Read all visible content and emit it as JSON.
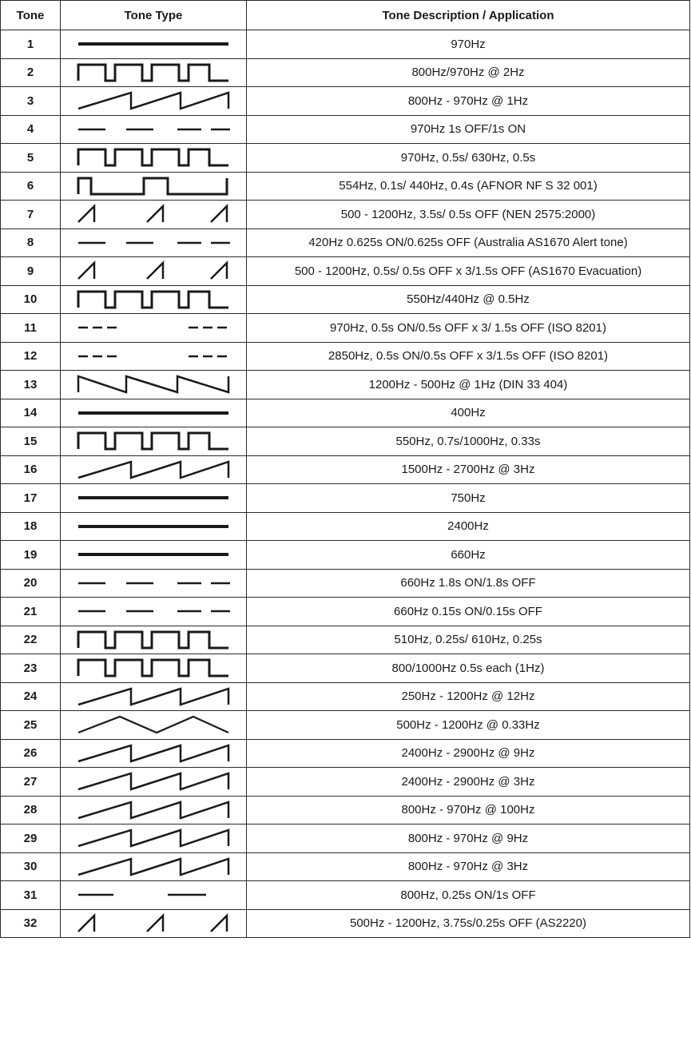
{
  "headers": {
    "tone": "Tone",
    "type": "Tone Type",
    "desc": "Tone Description / Application"
  },
  "rows": [
    {
      "tone": "1",
      "wave": "continuous",
      "desc": "970Hz"
    },
    {
      "tone": "2",
      "wave": "square",
      "desc": "800Hz/970Hz @ 2Hz"
    },
    {
      "tone": "3",
      "wave": "sawtooth-3",
      "desc": "800Hz - 970Hz @ 1Hz"
    },
    {
      "tone": "4",
      "wave": "dashes",
      "desc": "970Hz 1s OFF/1s ON"
    },
    {
      "tone": "5",
      "wave": "square",
      "desc": "970Hz, 0.5s/ 630Hz, 0.5s"
    },
    {
      "tone": "6",
      "wave": "square-wide",
      "desc": "554Hz, 0.1s/ 440Hz, 0.4s (AFNOR NF S 32 001)"
    },
    {
      "tone": "7",
      "wave": "ramp-gap",
      "desc": "500 - 1200Hz, 3.5s/ 0.5s OFF (NEN 2575:2000)"
    },
    {
      "tone": "8",
      "wave": "dashes",
      "desc": "420Hz 0.625s ON/0.625s OFF (Australia AS1670 Alert tone)"
    },
    {
      "tone": "9",
      "wave": "ramp-gap",
      "desc": "500 - 1200Hz, 0.5s/ 0.5s OFF x 3/1.5s OFF (AS1670 Evacuation)"
    },
    {
      "tone": "10",
      "wave": "square",
      "desc": "550Hz/440Hz @ 0.5Hz"
    },
    {
      "tone": "11",
      "wave": "triple-dash",
      "desc": "970Hz, 0.5s ON/0.5s OFF x 3/ 1.5s OFF (ISO 8201)"
    },
    {
      "tone": "12",
      "wave": "triple-dash",
      "desc": "2850Hz, 0.5s ON/0.5s OFF x 3/1.5s OFF (ISO 8201)"
    },
    {
      "tone": "13",
      "wave": "sawtooth-down",
      "desc": "1200Hz - 500Hz @ 1Hz (DIN 33 404)"
    },
    {
      "tone": "14",
      "wave": "continuous",
      "desc": "400Hz"
    },
    {
      "tone": "15",
      "wave": "square",
      "desc": "550Hz, 0.7s/1000Hz, 0.33s"
    },
    {
      "tone": "16",
      "wave": "sawtooth-3",
      "desc": "1500Hz - 2700Hz @ 3Hz"
    },
    {
      "tone": "17",
      "wave": "continuous",
      "desc": "750Hz"
    },
    {
      "tone": "18",
      "wave": "continuous",
      "desc": "2400Hz"
    },
    {
      "tone": "19",
      "wave": "continuous",
      "desc": "660Hz"
    },
    {
      "tone": "20",
      "wave": "dashes",
      "desc": "660Hz 1.8s ON/1.8s OFF"
    },
    {
      "tone": "21",
      "wave": "dashes",
      "desc": "660Hz 0.15s ON/0.15s OFF"
    },
    {
      "tone": "22",
      "wave": "square",
      "desc": "510Hz, 0.25s/ 610Hz, 0.25s"
    },
    {
      "tone": "23",
      "wave": "square",
      "desc": "800/1000Hz 0.5s each (1Hz)"
    },
    {
      "tone": "24",
      "wave": "sawtooth-3",
      "desc": "250Hz - 1200Hz @ 12Hz"
    },
    {
      "tone": "25",
      "wave": "triangle",
      "desc": "500Hz - 1200Hz @ 0.33Hz"
    },
    {
      "tone": "26",
      "wave": "sawtooth-3",
      "desc": "2400Hz - 2900Hz @ 9Hz"
    },
    {
      "tone": "27",
      "wave": "sawtooth-3",
      "desc": "2400Hz - 2900Hz @ 3Hz"
    },
    {
      "tone": "28",
      "wave": "sawtooth-3",
      "desc": "800Hz - 970Hz @ 100Hz"
    },
    {
      "tone": "29",
      "wave": "sawtooth-3",
      "desc": "800Hz - 970Hz @ 9Hz"
    },
    {
      "tone": "30",
      "wave": "sawtooth-3",
      "desc": "800Hz - 970Hz @ 3Hz"
    },
    {
      "tone": "31",
      "wave": "dash-pair",
      "desc": "800Hz, 0.25s ON/1s OFF"
    },
    {
      "tone": "32",
      "wave": "ramp-gap",
      "desc": "500Hz - 1200Hz, 3.75s/0.25s OFF (AS2220)"
    }
  ]
}
